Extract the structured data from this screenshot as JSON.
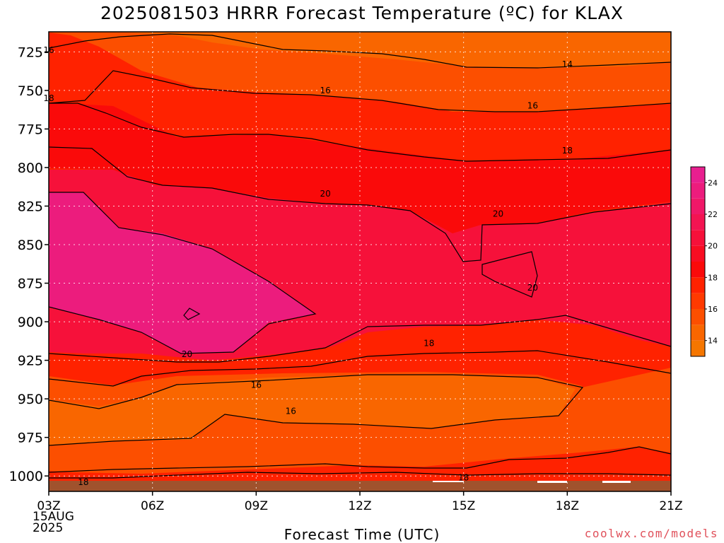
{
  "chart_data": {
    "type": "heatmap",
    "title": "2025081503 HRRR Forecast Temperature (ºC) for KLAX",
    "xlabel": "Forecast Time (UTC)",
    "x_tick_labels": [
      "03Z",
      "06Z",
      "09Z",
      "12Z",
      "15Z",
      "18Z",
      "21Z"
    ],
    "x_date_label": [
      "15AUG",
      "2025"
    ],
    "y_tick_labels": [
      "725",
      "750",
      "775",
      "800",
      "825",
      "850",
      "875",
      "900",
      "925",
      "950",
      "975",
      "1000"
    ],
    "y_axis": "pressure (hPa), increasing downward",
    "ylim": [
      712,
      1010
    ],
    "colorbar": {
      "ticks": [
        "14",
        "16",
        "18",
        "20",
        "22",
        "24"
      ],
      "levels": [
        13,
        14,
        15,
        16,
        17,
        18,
        19,
        20,
        21,
        22,
        23,
        24,
        25
      ],
      "colors": [
        "#f57600",
        "#f96600",
        "#fc4f00",
        "#ff3a00",
        "#ff2200",
        "#fa0a0a",
        "#f80d22",
        "#f6113a",
        "#f31452",
        "#f01868",
        "#ec1c7d",
        "#e81f8f"
      ]
    },
    "contour_labels": [
      {
        "value": "16",
        "time": "03Z",
        "pressure": 724
      },
      {
        "value": "18",
        "time": "03Z",
        "pressure": 755
      },
      {
        "value": "16",
        "time": "11Z",
        "pressure": 750
      },
      {
        "value": "14",
        "time": "18Z",
        "pressure": 733
      },
      {
        "value": "16",
        "time": "17Z",
        "pressure": 760
      },
      {
        "value": "18",
        "time": "18Z",
        "pressure": 789
      },
      {
        "value": "20",
        "time": "11Z",
        "pressure": 817
      },
      {
        "value": "20",
        "time": "16Z",
        "pressure": 830
      },
      {
        "value": "20",
        "time": "17Z",
        "pressure": 878
      },
      {
        "value": "18",
        "time": "14Z",
        "pressure": 914
      },
      {
        "value": "20",
        "time": "07Z",
        "pressure": 921
      },
      {
        "value": "16",
        "time": "09Z",
        "pressure": 941
      },
      {
        "value": "16",
        "time": "10Z",
        "pressure": 958
      },
      {
        "value": "18",
        "time": "15Z",
        "pressure": 1001
      },
      {
        "value": "18",
        "time": "04Z",
        "pressure": 1004
      }
    ],
    "colors": {
      "ground": "#a0522d",
      "contour_line": "#000000",
      "grid": "#ffffff"
    }
  },
  "credit": "coolwx.com/models"
}
